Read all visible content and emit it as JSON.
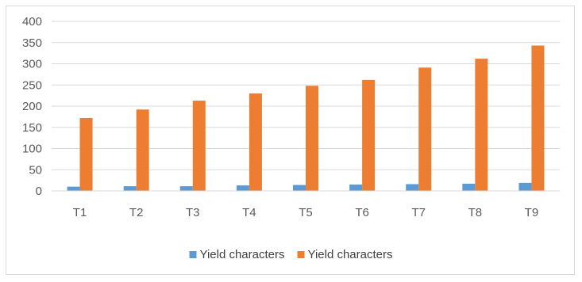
{
  "chart_data": {
    "type": "bar",
    "title": "",
    "xlabel": "",
    "ylabel": "",
    "categories": [
      "T1",
      "T2",
      "T3",
      "T4",
      "T5",
      "T6",
      "T7",
      "T8",
      "T9"
    ],
    "ylim": [
      0,
      400
    ],
    "yticks": [
      0,
      50,
      100,
      150,
      200,
      250,
      300,
      350,
      400
    ],
    "grid": true,
    "legend_position": "bottom",
    "series": [
      {
        "name": "Yield characters",
        "color": "#5b9bd5",
        "values": [
          10,
          11,
          11,
          13,
          14,
          15,
          16,
          17,
          19
        ]
      },
      {
        "name": "Yield characters",
        "color": "#ed7d31",
        "values": [
          172,
          192,
          213,
          230,
          248,
          262,
          291,
          312,
          343
        ]
      }
    ]
  }
}
